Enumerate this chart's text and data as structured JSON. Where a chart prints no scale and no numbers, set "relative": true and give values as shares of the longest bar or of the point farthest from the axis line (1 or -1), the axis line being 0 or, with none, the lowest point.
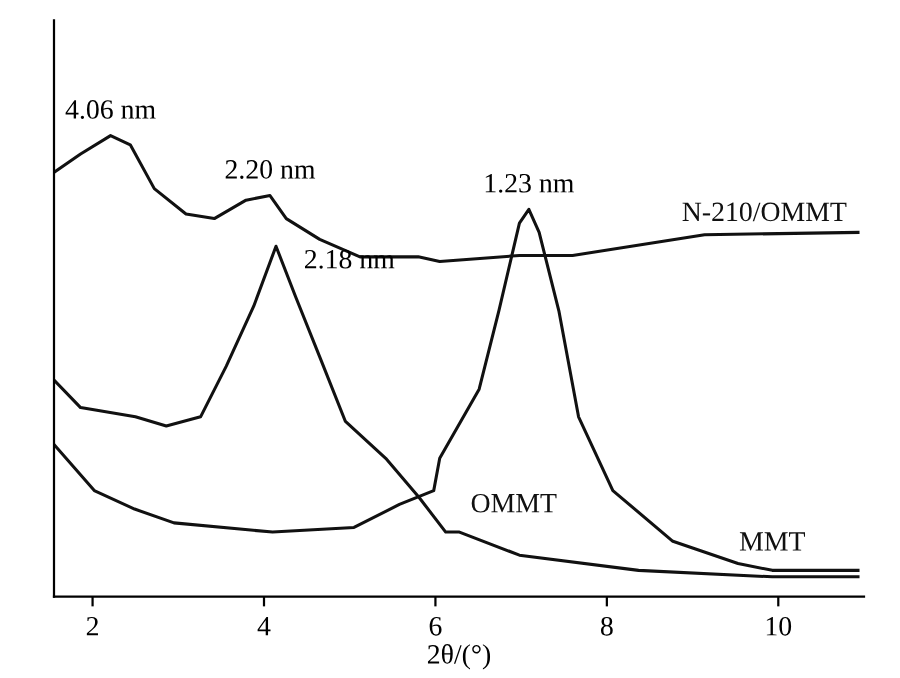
{
  "chart_data": {
    "type": "line",
    "relative": true,
    "xlabel": "2θ/(°)",
    "xlim": [
      1.55,
      11
    ],
    "xticks": [
      2,
      4,
      6,
      8,
      10
    ],
    "grid": false,
    "legend": false,
    "marker": "none",
    "line_style": "solid",
    "series": [
      {
        "name": "N-210/OMMT",
        "color": "#111111",
        "x": [
          1.55,
          1.86,
          2.21,
          2.44,
          2.72,
          3.09,
          3.42,
          3.79,
          4.07,
          4.26,
          4.65,
          5.12,
          5.8,
          6.05,
          6.98,
          7.6,
          9.14,
          10.93
        ],
        "values": [
          0.92,
          0.96,
          1.0,
          0.98,
          0.885,
          0.83,
          0.82,
          0.86,
          0.87,
          0.82,
          0.775,
          0.737,
          0.737,
          0.727,
          0.74,
          0.74,
          0.785,
          0.79
        ]
      },
      {
        "name": "OMMT",
        "color": "#111111",
        "x": [
          1.55,
          1.86,
          2.5,
          2.86,
          3.26,
          3.56,
          3.88,
          4.14,
          4.37,
          4.65,
          4.95,
          5.42,
          5.81,
          6.12,
          6.28,
          6.98,
          8.37,
          9.93,
          10.93
        ],
        "values": [
          0.47,
          0.41,
          0.39,
          0.37,
          0.39,
          0.5,
          0.63,
          0.76,
          0.65,
          0.52,
          0.38,
          0.3,
          0.215,
          0.14,
          0.14,
          0.09,
          0.057,
          0.043,
          0.043
        ]
      },
      {
        "name": "MMT",
        "color": "#111111",
        "x": [
          1.55,
          2.02,
          2.49,
          2.95,
          4.1,
          5.05,
          5.58,
          5.98,
          6.05,
          6.51,
          6.74,
          6.98,
          7.09,
          7.21,
          7.44,
          7.67,
          8.07,
          8.77,
          9.53,
          9.93,
          10.93
        ],
        "values": [
          0.33,
          0.23,
          0.19,
          0.16,
          0.14,
          0.15,
          0.2,
          0.23,
          0.3,
          0.45,
          0.62,
          0.81,
          0.84,
          0.79,
          0.62,
          0.39,
          0.23,
          0.12,
          0.072,
          0.057,
          0.057
        ]
      }
    ],
    "annotations": [
      {
        "text": "4.06 nm",
        "x": 2.21,
        "y": 1.0
      },
      {
        "text": "2.20 nm",
        "x": 4.07,
        "y": 0.87
      },
      {
        "text": "2.18 nm",
        "x": 4.14,
        "y": 0.76
      },
      {
        "text": "1.23 nm",
        "x": 7.09,
        "y": 0.84
      }
    ]
  }
}
